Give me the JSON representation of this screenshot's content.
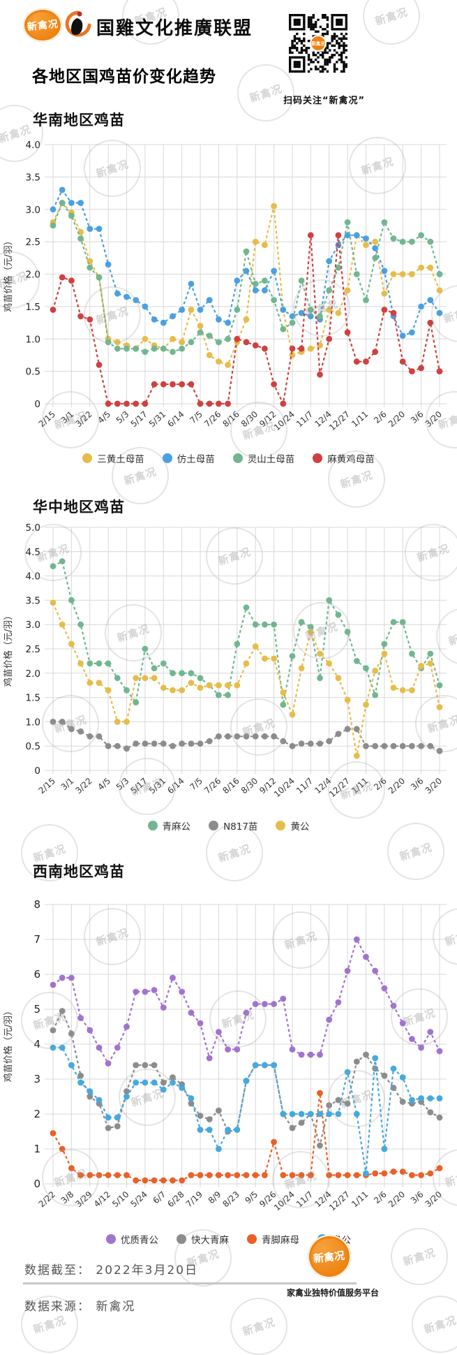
{
  "header": {
    "badge_text": "新禽况",
    "alliance_name": "国雞文化推廣联盟",
    "qr_caption": "扫码关注“新禽况”",
    "title": "各地区国鸡苗价变化趋势"
  },
  "watermark": {
    "text": "新禽况"
  },
  "footer": {
    "cutoff_label": "数据截至：",
    "cutoff_value": "2022年3月20日",
    "source_label": "数据来源：",
    "source_value": "新禽况",
    "logo_text": "新禽况",
    "tagline": "家禽业独特价值服务平台"
  },
  "chart_data": [
    {
      "type": "line",
      "title": "华南地区鸡苗",
      "ylabel": "鸡苗价格（元/羽）",
      "ylim": [
        0,
        4.0
      ],
      "ytick_step": 0.5,
      "ytick_decimals": 1,
      "grid": true,
      "legend_position": "bottom",
      "label_every": 2,
      "categories": [
        "2/15",
        "3/1",
        "3/22",
        "4/5",
        "5/3",
        "5/17",
        "5/31",
        "6/14",
        "7/5",
        "7/26",
        "8/16",
        "8/30",
        "9/12",
        "10/24",
        "11/7",
        "12/4",
        "12/27",
        "1/11",
        "2/6",
        "2/20",
        "3/6",
        "3/20"
      ],
      "series": [
        {
          "name": "三黄土母苗",
          "color": "#e6bd4a",
          "values": [
            2.8,
            3.1,
            2.95,
            2.65,
            2.2,
            1.95,
            1.0,
            0.95,
            0.9,
            0.85,
            1.0,
            0.9,
            0.85,
            1.0,
            0.95,
            1.45,
            1.2,
            0.75,
            0.65,
            0.6,
            0.95,
            1.3,
            2.5,
            2.45,
            3.05,
            1.45,
            0.75,
            0.8,
            0.85,
            0.9,
            1.45,
            1.4,
            1.75,
            2.6,
            2.45,
            2.5,
            1.7,
            2.0,
            2.0,
            2.0,
            2.1,
            2.1,
            1.75
          ]
        },
        {
          "name": "仿土母苗",
          "color": "#4aa0e0",
          "values": [
            3.0,
            3.3,
            3.1,
            3.1,
            2.7,
            2.7,
            2.15,
            1.7,
            1.65,
            1.6,
            1.5,
            1.3,
            1.25,
            1.35,
            1.45,
            1.85,
            1.45,
            1.6,
            1.3,
            1.25,
            1.9,
            2.05,
            1.75,
            1.75,
            2.05,
            1.45,
            1.35,
            1.4,
            1.35,
            1.3,
            2.2,
            2.45,
            2.6,
            2.6,
            2.55,
            2.4,
            2.05,
            1.35,
            1.05,
            1.1,
            1.5,
            1.6,
            1.4
          ]
        },
        {
          "name": "灵山土母苗",
          "color": "#72b690",
          "values": [
            2.75,
            3.1,
            2.9,
            2.55,
            2.1,
            1.95,
            0.95,
            0.85,
            0.85,
            0.85,
            0.8,
            0.85,
            0.85,
            0.8,
            0.85,
            0.95,
            1.1,
            1.05,
            0.95,
            1.0,
            1.45,
            2.35,
            1.85,
            1.9,
            1.6,
            1.15,
            1.25,
            1.9,
            1.45,
            1.35,
            1.75,
            2.1,
            2.8,
            2.0,
            1.6,
            2.25,
            2.8,
            2.55,
            2.5,
            2.5,
            2.6,
            2.5,
            2.0
          ]
        },
        {
          "name": "麻黄鸡母苗",
          "color": "#cf4040",
          "values": [
            1.45,
            1.95,
            1.9,
            1.35,
            1.3,
            0.6,
            0,
            0,
            0,
            0,
            0,
            0.3,
            0.3,
            0.3,
            0.3,
            0.3,
            0,
            0,
            0,
            0,
            1.0,
            0.95,
            0.9,
            0.85,
            0.3,
            0,
            0.85,
            0.85,
            2.6,
            0.45,
            1.0,
            2.6,
            1.1,
            0.65,
            0.65,
            0.8,
            1.45,
            1.4,
            0.65,
            0.5,
            0.55,
            1.25,
            0.5
          ]
        }
      ]
    },
    {
      "type": "line",
      "title": "华中地区鸡苗",
      "ylabel": "鸡苗价格（元/羽）",
      "ylim": [
        0,
        5.0
      ],
      "ytick_step": 0.5,
      "ytick_decimals": 1,
      "grid": true,
      "legend_position": "bottom",
      "label_every": 2,
      "categories": [
        "2/15",
        "3/1",
        "3/22",
        "4/5",
        "5/3",
        "5/17",
        "5/31",
        "6/14",
        "7/5",
        "7/26",
        "8/16",
        "8/30",
        "9/12",
        "10/24",
        "11/7",
        "12/4",
        "12/27",
        "1/11",
        "2/6",
        "2/20",
        "3/6",
        "3/20"
      ],
      "series": [
        {
          "name": "青麻公",
          "color": "#72b690",
          "values": [
            4.2,
            4.3,
            3.5,
            3.0,
            2.2,
            2.2,
            2.2,
            1.9,
            1.65,
            1.4,
            2.5,
            2.1,
            2.2,
            2.0,
            2.0,
            2.0,
            1.9,
            1.75,
            1.55,
            1.55,
            2.6,
            3.35,
            3.0,
            3.0,
            3.0,
            1.35,
            2.35,
            3.05,
            2.95,
            1.9,
            3.5,
            3.2,
            2.85,
            2.25,
            2.1,
            1.55,
            2.6,
            3.05,
            3.05,
            2.4,
            2.1,
            2.4,
            1.75
          ]
        },
        {
          "name": "N817苗",
          "color": "#8c8c8c",
          "values": [
            1.0,
            1.0,
            0.85,
            0.8,
            0.7,
            0.7,
            0.5,
            0.5,
            0.45,
            0.55,
            0.55,
            0.55,
            0.55,
            0.5,
            0.55,
            0.55,
            0.55,
            0.6,
            0.7,
            0.7,
            0.7,
            0.7,
            0.7,
            0.7,
            0.7,
            0.6,
            0.5,
            0.55,
            0.55,
            0.55,
            0.6,
            0.75,
            0.85,
            0.85,
            0.5,
            0.5,
            0.5,
            0.5,
            0.5,
            0.5,
            0.5,
            0.5,
            0.4
          ]
        },
        {
          "name": "黄公",
          "color": "#e6bd4a",
          "values": [
            3.45,
            3.0,
            2.6,
            2.2,
            1.8,
            1.8,
            1.65,
            1.0,
            1.0,
            1.9,
            1.9,
            1.9,
            1.7,
            1.65,
            1.65,
            1.8,
            1.7,
            1.75,
            1.75,
            1.75,
            1.75,
            2.2,
            2.55,
            2.3,
            2.3,
            1.6,
            1.15,
            2.1,
            2.85,
            2.4,
            2.2,
            1.9,
            1.45,
            0.3,
            1.35,
            2.05,
            2.4,
            1.7,
            1.65,
            1.65,
            2.15,
            2.2,
            1.3
          ]
        }
      ]
    },
    {
      "type": "line",
      "title": "西南地区鸡苗",
      "ylabel": "鸡苗价格（元/羽）",
      "ylim": [
        0,
        8
      ],
      "ytick_step": 1,
      "ytick_decimals": 0,
      "grid": true,
      "legend_position": "bottom",
      "label_every": 2,
      "categories": [
        "2/22",
        "3/8",
        "3/29",
        "4/12",
        "5/10",
        "5/24",
        "6/7",
        "6/28",
        "7/19",
        "8/9",
        "8/23",
        "9/5",
        "9/26",
        "10/24",
        "11/7",
        "12/4",
        "12/27",
        "1/11",
        "2/6",
        "2/20",
        "3/6",
        "3/20"
      ],
      "series": [
        {
          "name": "优质青公",
          "color": "#a173cf",
          "values": [
            5.7,
            5.9,
            5.9,
            4.75,
            4.4,
            3.9,
            3.45,
            3.9,
            4.5,
            5.5,
            5.5,
            5.55,
            5.05,
            5.9,
            5.5,
            4.9,
            4.6,
            3.6,
            4.35,
            3.85,
            3.85,
            4.9,
            5.15,
            5.15,
            5.15,
            5.3,
            3.85,
            3.7,
            3.7,
            3.7,
            4.7,
            5.2,
            6.1,
            7.0,
            6.5,
            6.1,
            5.6,
            5.1,
            4.6,
            4.15,
            3.9,
            4.35,
            3.8
          ]
        },
        {
          "name": "快大青麻",
          "color": "#8c8c8c",
          "values": [
            4.4,
            4.95,
            4.3,
            3.1,
            2.5,
            2.3,
            1.6,
            1.65,
            2.65,
            3.4,
            3.4,
            3.4,
            2.9,
            3.05,
            2.85,
            2.3,
            1.95,
            1.85,
            2.1,
            1.5,
            1.55,
            2.95,
            3.4,
            3.4,
            3.4,
            2.0,
            1.6,
            1.75,
            2.0,
            1.1,
            2.25,
            2.4,
            2.3,
            3.5,
            3.7,
            3.3,
            3.1,
            2.75,
            2.35,
            2.3,
            2.35,
            2.05,
            1.9
          ]
        },
        {
          "name": "青脚麻母",
          "color": "#eb5f28",
          "values": [
            1.45,
            1.0,
            0.45,
            0.25,
            0.25,
            0.25,
            0.25,
            0.25,
            0.25,
            0.1,
            0.1,
            0.1,
            0.1,
            0.1,
            0.1,
            0.25,
            0.25,
            0.25,
            0.25,
            0.25,
            0.25,
            0.25,
            0.25,
            0.25,
            1.2,
            0.25,
            0.25,
            0.25,
            0.25,
            2.6,
            0.25,
            0.25,
            0.25,
            0.25,
            0.25,
            0.3,
            0.3,
            0.35,
            0.35,
            0.25,
            0.25,
            0.3,
            0.45
          ]
        },
        {
          "name": "乌公",
          "color": "#45a9dd",
          "values": [
            3.9,
            3.9,
            3.4,
            2.9,
            2.65,
            2.4,
            1.9,
            1.9,
            2.5,
            2.9,
            2.9,
            2.9,
            2.7,
            2.9,
            2.75,
            2.45,
            1.55,
            1.55,
            1.0,
            1.55,
            1.55,
            2.95,
            3.4,
            3.4,
            3.4,
            2.0,
            2.0,
            2.0,
            2.0,
            2.0,
            2.0,
            2.0,
            3.2,
            2.0,
            0.3,
            3.6,
            1.0,
            3.3,
            3.05,
            2.4,
            2.45,
            2.45,
            2.45
          ]
        }
      ]
    }
  ]
}
